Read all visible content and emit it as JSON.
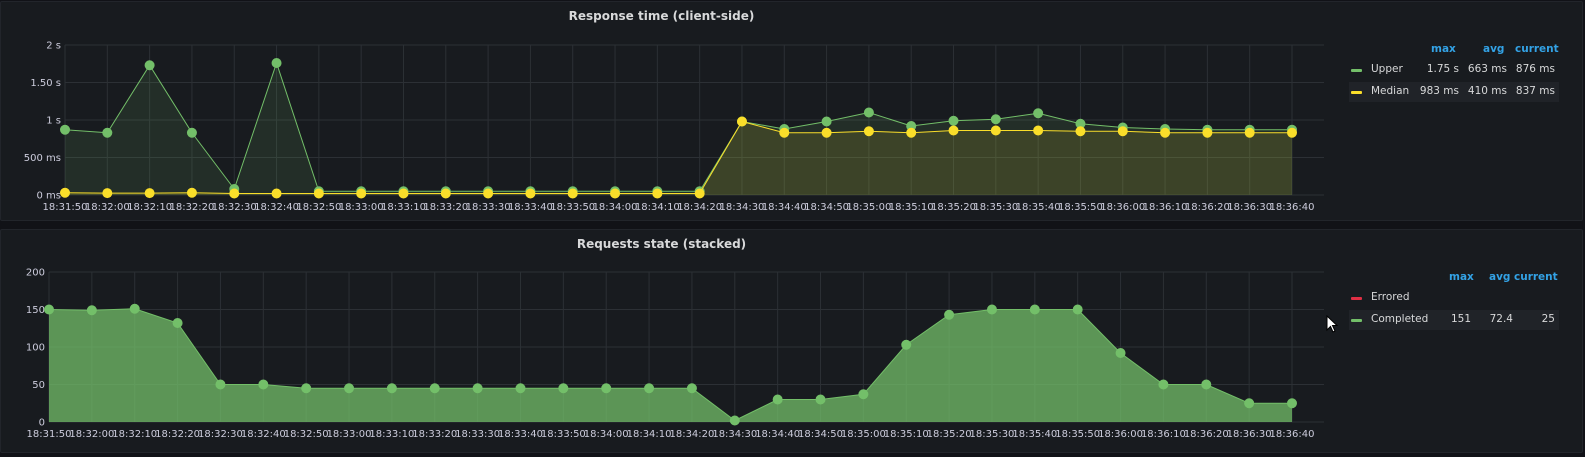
{
  "chart_data": [
    {
      "type": "line",
      "title": "Response time (client-side)",
      "x": [
        "18:31:50",
        "18:32:00",
        "18:32:10",
        "18:32:20",
        "18:32:30",
        "18:32:40",
        "18:32:50",
        "18:33:00",
        "18:33:10",
        "18:33:20",
        "18:33:30",
        "18:33:40",
        "18:33:50",
        "18:34:00",
        "18:34:10",
        "18:34:20",
        "18:34:30",
        "18:34:40",
        "18:34:50",
        "18:35:00",
        "18:35:10",
        "18:35:20",
        "18:35:30",
        "18:35:40",
        "18:35:50",
        "18:36:00",
        "18:36:10",
        "18:36:20",
        "18:36:30",
        "18:36:40"
      ],
      "y_ticks": [
        {
          "v": 0,
          "label": "0 ms"
        },
        {
          "v": 500,
          "label": "500 ms"
        },
        {
          "v": 1000,
          "label": "1 s"
        },
        {
          "v": 1500,
          "label": "1.50 s"
        },
        {
          "v": 2000,
          "label": "2 s"
        }
      ],
      "ylim": [
        0,
        2000
      ],
      "y_unit": "ms",
      "grid": true,
      "legend_position": "right",
      "legend_headers": [
        "max",
        "avg",
        "current"
      ],
      "series": [
        {
          "name": "Upper",
          "color": "#73bf69",
          "stacked": false,
          "points": [
            [
              0,
              870
            ],
            [
              1,
              830
            ],
            [
              2,
              1730
            ],
            [
              3,
              830
            ],
            [
              4,
              80
            ],
            [
              5,
              1760
            ],
            [
              6,
              50
            ],
            [
              7,
              50
            ],
            [
              8,
              50
            ],
            [
              9,
              50
            ],
            [
              10,
              50
            ],
            [
              11,
              50
            ],
            [
              12,
              50
            ],
            [
              13,
              50
            ],
            [
              14,
              50
            ],
            [
              15,
              50
            ],
            [
              16,
              980
            ],
            [
              17,
              880
            ],
            [
              18,
              980
            ],
            [
              19,
              1100
            ],
            [
              20,
              920
            ],
            [
              21,
              990
            ],
            [
              22,
              1010
            ],
            [
              23,
              1090
            ],
            [
              24,
              950
            ],
            [
              25,
              900
            ],
            [
              26,
              880
            ],
            [
              27,
              870
            ],
            [
              28,
              870
            ],
            [
              29,
              870
            ]
          ],
          "stats": [
            "1.75 s",
            "663 ms",
            "876 ms"
          ]
        },
        {
          "name": "Median",
          "color": "#fade2a",
          "stacked": false,
          "points": [
            [
              0,
              30
            ],
            [
              1,
              25
            ],
            [
              2,
              25
            ],
            [
              3,
              30
            ],
            [
              4,
              20
            ],
            [
              5,
              20
            ],
            [
              6,
              20
            ],
            [
              7,
              20
            ],
            [
              8,
              20
            ],
            [
              9,
              20
            ],
            [
              10,
              20
            ],
            [
              11,
              20
            ],
            [
              12,
              20
            ],
            [
              13,
              20
            ],
            [
              14,
              20
            ],
            [
              15,
              20
            ],
            [
              16,
              980
            ],
            [
              17,
              830
            ],
            [
              18,
              830
            ],
            [
              19,
              850
            ],
            [
              20,
              830
            ],
            [
              21,
              860
            ],
            [
              22,
              860
            ],
            [
              23,
              860
            ],
            [
              24,
              850
            ],
            [
              25,
              850
            ],
            [
              26,
              830
            ],
            [
              27,
              830
            ],
            [
              28,
              830
            ],
            [
              29,
              830
            ]
          ],
          "stats": [
            "983 ms",
            "410 ms",
            "837 ms"
          ]
        }
      ]
    },
    {
      "type": "area",
      "title": "Requests state (stacked)",
      "x": [
        "18:31:50",
        "18:32:00",
        "18:32:10",
        "18:32:20",
        "18:32:30",
        "18:32:40",
        "18:32:50",
        "18:33:00",
        "18:33:10",
        "18:33:20",
        "18:33:30",
        "18:33:40",
        "18:33:50",
        "18:34:00",
        "18:34:10",
        "18:34:20",
        "18:34:30",
        "18:34:40",
        "18:34:50",
        "18:35:00",
        "18:35:10",
        "18:35:20",
        "18:35:30",
        "18:35:40",
        "18:35:50",
        "18:36:00",
        "18:36:10",
        "18:36:20",
        "18:36:30",
        "18:36:40"
      ],
      "y_ticks": [
        {
          "v": 0,
          "label": "0"
        },
        {
          "v": 50,
          "label": "50"
        },
        {
          "v": 100,
          "label": "100"
        },
        {
          "v": 150,
          "label": "150"
        },
        {
          "v": 200,
          "label": "200"
        }
      ],
      "ylim": [
        0,
        200
      ],
      "grid": true,
      "legend_position": "right",
      "legend_headers": [
        "max",
        "avg",
        "current"
      ],
      "series": [
        {
          "name": "Errored",
          "color": "#e02f44",
          "stacked": true,
          "points": [],
          "stats": [
            "",
            "",
            ""
          ]
        },
        {
          "name": "Completed",
          "color": "#73bf69",
          "stacked": true,
          "points": [
            [
              0,
              150
            ],
            [
              1,
              149
            ],
            [
              2,
              151
            ],
            [
              3,
              132
            ],
            [
              4,
              50
            ],
            [
              5,
              50
            ],
            [
              6,
              45
            ],
            [
              7,
              45
            ],
            [
              8,
              45
            ],
            [
              9,
              45
            ],
            [
              10,
              45
            ],
            [
              11,
              45
            ],
            [
              12,
              45
            ],
            [
              13,
              45
            ],
            [
              14,
              45
            ],
            [
              15,
              45
            ],
            [
              16,
              2
            ],
            [
              17,
              30
            ],
            [
              18,
              30
            ],
            [
              19,
              37
            ],
            [
              20,
              103
            ],
            [
              21,
              143
            ],
            [
              22,
              150
            ],
            [
              23,
              150
            ],
            [
              24,
              150
            ],
            [
              25,
              92
            ],
            [
              26,
              50
            ],
            [
              27,
              50
            ],
            [
              28,
              25
            ],
            [
              29,
              25
            ]
          ],
          "stats": [
            "151",
            "72.4",
            "25"
          ]
        }
      ]
    }
  ]
}
